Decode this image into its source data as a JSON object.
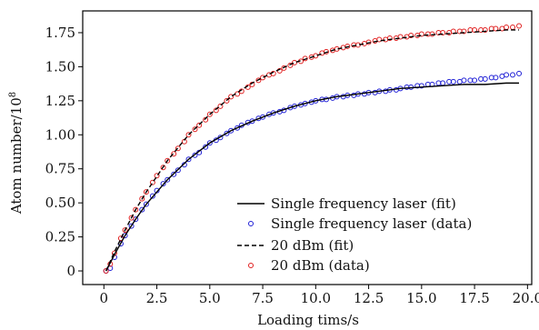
{
  "chart_data": {
    "type": "scatter",
    "title": "",
    "xlabel": "Loading tims/s",
    "ylabel": "Atom number/10",
    "ylabel_exponent": "8",
    "xlim": [
      -1.0,
      20.2
    ],
    "ylim": [
      -0.1,
      1.91
    ],
    "xticks": [
      0,
      2.5,
      5.0,
      7.5,
      10.0,
      12.5,
      15.0,
      17.5,
      20.0
    ],
    "xtick_labels": [
      "0",
      "2.5",
      "5.0",
      "7.5",
      "10.0",
      "12.5",
      "15.0",
      "17.5",
      "20.0"
    ],
    "yticks": [
      0,
      0.25,
      0.5,
      0.75,
      1.0,
      1.25,
      1.5,
      1.75
    ],
    "ytick_labels": [
      "0",
      "0.25",
      "0.50",
      "0.75",
      "1.00",
      "1.25",
      "1.50",
      "1.75"
    ],
    "grid": false,
    "legend_position": "bottom-right",
    "series": [
      {
        "name": "Single frequency laser (fit)",
        "kind": "line",
        "style": "solid",
        "color": "#000000",
        "x": [
          0.1,
          0.5,
          1,
          1.5,
          2,
          3,
          4,
          5,
          6,
          7,
          8,
          9,
          10,
          11,
          12,
          13,
          14,
          15,
          16,
          17,
          18,
          19,
          19.6
        ],
        "y": [
          0.0,
          0.12,
          0.26,
          0.38,
          0.49,
          0.67,
          0.82,
          0.94,
          1.03,
          1.1,
          1.16,
          1.21,
          1.25,
          1.28,
          1.3,
          1.32,
          1.34,
          1.35,
          1.36,
          1.37,
          1.37,
          1.38,
          1.38
        ]
      },
      {
        "name": "Single frequency laser (data)",
        "kind": "scatter",
        "marker": "open-circle",
        "color": "#1f1fd6",
        "x": [
          0.1,
          0.3,
          0.5,
          0.8,
          1,
          1.3,
          1.5,
          1.8,
          2,
          2.3,
          2.5,
          2.8,
          3,
          3.3,
          3.5,
          3.8,
          4,
          4.3,
          4.5,
          4.8,
          5,
          5.3,
          5.5,
          5.8,
          6,
          6.3,
          6.5,
          6.8,
          7,
          7.3,
          7.5,
          7.8,
          8,
          8.3,
          8.5,
          8.8,
          9,
          9.3,
          9.5,
          9.8,
          10,
          10.3,
          10.5,
          10.8,
          11,
          11.3,
          11.5,
          11.8,
          12,
          12.3,
          12.5,
          12.8,
          13,
          13.3,
          13.5,
          13.8,
          14,
          14.3,
          14.5,
          14.8,
          15,
          15.3,
          15.5,
          15.8,
          16,
          16.3,
          16.5,
          16.8,
          17,
          17.3,
          17.5,
          17.8,
          18,
          18.3,
          18.5,
          18.8,
          19,
          19.3,
          19.6
        ],
        "y": [
          0.0,
          0.02,
          0.1,
          0.2,
          0.26,
          0.33,
          0.38,
          0.45,
          0.49,
          0.55,
          0.59,
          0.64,
          0.67,
          0.71,
          0.74,
          0.78,
          0.82,
          0.85,
          0.87,
          0.91,
          0.94,
          0.96,
          0.98,
          1.01,
          1.03,
          1.05,
          1.07,
          1.09,
          1.1,
          1.12,
          1.13,
          1.15,
          1.16,
          1.17,
          1.18,
          1.2,
          1.21,
          1.22,
          1.23,
          1.24,
          1.25,
          1.26,
          1.26,
          1.27,
          1.28,
          1.28,
          1.29,
          1.29,
          1.3,
          1.3,
          1.31,
          1.31,
          1.32,
          1.32,
          1.33,
          1.33,
          1.34,
          1.35,
          1.35,
          1.36,
          1.36,
          1.37,
          1.37,
          1.38,
          1.38,
          1.39,
          1.39,
          1.39,
          1.4,
          1.4,
          1.4,
          1.41,
          1.41,
          1.42,
          1.42,
          1.43,
          1.44,
          1.44,
          1.45
        ]
      },
      {
        "name": "20 dBm (fit)",
        "kind": "line",
        "style": "dashed",
        "color": "#000000",
        "x": [
          0.1,
          0.5,
          1,
          1.5,
          2,
          3,
          4,
          5,
          6,
          7,
          8,
          9,
          10,
          11,
          12,
          13,
          14,
          15,
          16,
          17,
          18,
          19,
          19.6
        ],
        "y": [
          0.0,
          0.14,
          0.3,
          0.45,
          0.58,
          0.81,
          1.0,
          1.15,
          1.28,
          1.38,
          1.46,
          1.53,
          1.58,
          1.63,
          1.66,
          1.69,
          1.71,
          1.73,
          1.74,
          1.75,
          1.76,
          1.77,
          1.77
        ]
      },
      {
        "name": "20 dBm (data)",
        "kind": "scatter",
        "marker": "open-circle",
        "color": "#e01f1f",
        "x": [
          0.1,
          0.3,
          0.5,
          0.8,
          1,
          1.3,
          1.5,
          1.8,
          2,
          2.3,
          2.5,
          2.8,
          3,
          3.3,
          3.5,
          3.8,
          4,
          4.3,
          4.5,
          4.8,
          5,
          5.3,
          5.5,
          5.8,
          6,
          6.3,
          6.5,
          6.8,
          7,
          7.3,
          7.5,
          7.8,
          8,
          8.3,
          8.5,
          8.8,
          9,
          9.3,
          9.5,
          9.8,
          10,
          10.3,
          10.5,
          10.8,
          11,
          11.3,
          11.5,
          11.8,
          12,
          12.3,
          12.5,
          12.8,
          13,
          13.3,
          13.5,
          13.8,
          14,
          14.3,
          14.5,
          14.8,
          15,
          15.3,
          15.5,
          15.8,
          16,
          16.3,
          16.5,
          16.8,
          17,
          17.3,
          17.5,
          17.8,
          18,
          18.3,
          18.5,
          18.8,
          19,
          19.3,
          19.6
        ],
        "y": [
          0.0,
          0.05,
          0.13,
          0.24,
          0.3,
          0.39,
          0.45,
          0.53,
          0.58,
          0.65,
          0.7,
          0.76,
          0.81,
          0.86,
          0.9,
          0.95,
          1.0,
          1.04,
          1.07,
          1.11,
          1.15,
          1.18,
          1.21,
          1.25,
          1.28,
          1.3,
          1.32,
          1.35,
          1.37,
          1.4,
          1.42,
          1.44,
          1.45,
          1.47,
          1.49,
          1.51,
          1.53,
          1.54,
          1.56,
          1.57,
          1.58,
          1.6,
          1.61,
          1.62,
          1.63,
          1.64,
          1.65,
          1.66,
          1.66,
          1.67,
          1.68,
          1.69,
          1.7,
          1.7,
          1.71,
          1.71,
          1.72,
          1.72,
          1.73,
          1.73,
          1.74,
          1.74,
          1.74,
          1.75,
          1.75,
          1.75,
          1.76,
          1.76,
          1.76,
          1.77,
          1.77,
          1.77,
          1.77,
          1.78,
          1.78,
          1.78,
          1.79,
          1.79,
          1.8
        ]
      }
    ]
  }
}
